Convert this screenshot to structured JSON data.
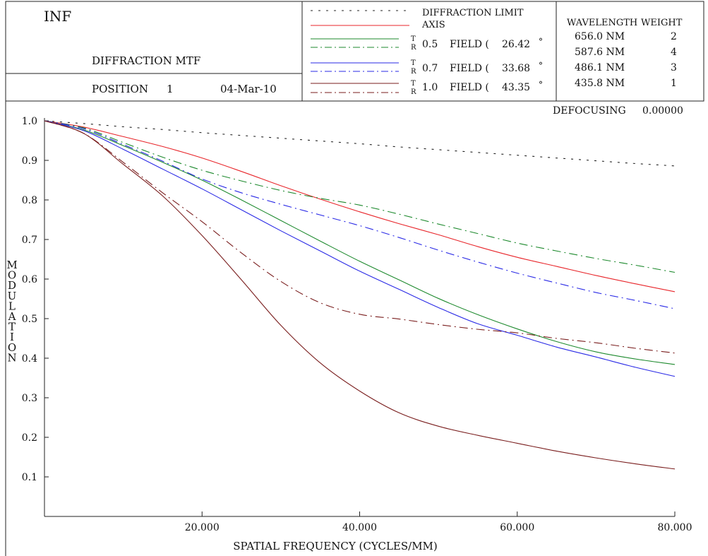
{
  "header": {
    "conjugate": "INF",
    "title": "DIFFRACTION MTF",
    "position_label": "POSITION",
    "position_value": "1",
    "date": "04-Mar-10",
    "defocusing_label": "DEFOCUSING",
    "defocusing_value": "0.00000"
  },
  "legend": {
    "diffraction_limit": "DIFFRACTION LIMIT",
    "axis": "AXIS",
    "t": "T",
    "r": "R",
    "field_word": "FIELD (",
    "degree": "°",
    "fields": [
      {
        "fraction": "0.5",
        "angle": "26.42"
      },
      {
        "fraction": "0.7",
        "angle": "33.68"
      },
      {
        "fraction": "1.0",
        "angle": "43.35"
      }
    ]
  },
  "wavelengths": {
    "header_wavelength": "WAVELENGTH",
    "header_weight": "WEIGHT",
    "rows": [
      {
        "wavelength": "656.0 NM",
        "weight": "2"
      },
      {
        "wavelength": "587.6 NM",
        "weight": "4"
      },
      {
        "wavelength": "486.1 NM",
        "weight": "3"
      },
      {
        "wavelength": "435.8 NM",
        "weight": "1"
      }
    ]
  },
  "colors": {
    "diffraction_limit": "#222222",
    "axis": "#e8262b",
    "field_05": "#1e8a2e",
    "field_07": "#2a2ae6",
    "field_10": "#7a1e1e",
    "frame": "#222222"
  },
  "chart_data": {
    "type": "line",
    "title": "DIFFRACTION MTF",
    "xlabel": "SPATIAL FREQUENCY (CYCLES/MM)",
    "ylabel": "MODULATION",
    "xlim": [
      0,
      80
    ],
    "ylim": [
      0,
      1
    ],
    "xticks": [
      20,
      40,
      60,
      80
    ],
    "xtick_labels": [
      "20.000",
      "40.000",
      "60.000",
      "80.000"
    ],
    "yticks": [
      0.1,
      0.2,
      0.3,
      0.4,
      0.5,
      0.6,
      0.7,
      0.8,
      0.9,
      1.0
    ],
    "ytick_labels": [
      "0.1",
      "0.2",
      "0.3",
      "0.4",
      "0.5",
      "0.6",
      "0.7",
      "0.8",
      "0.9",
      "1.0"
    ],
    "x": [
      0,
      5,
      10,
      15,
      20,
      25,
      30,
      35,
      40,
      45,
      50,
      55,
      60,
      65,
      70,
      75,
      80
    ],
    "series": [
      {
        "name": "DIFFRACTION LIMIT",
        "color": "#222222",
        "dash": "dotted",
        "values": [
          1.0,
          0.993,
          0.985,
          0.978,
          0.97,
          0.963,
          0.956,
          0.949,
          0.942,
          0.934,
          0.927,
          0.92,
          0.913,
          0.906,
          0.899,
          0.892,
          0.886
        ]
      },
      {
        "name": "AXIS",
        "color": "#e8262b",
        "dash": "solid",
        "values": [
          1.0,
          0.984,
          0.96,
          0.935,
          0.906,
          0.872,
          0.836,
          0.802,
          0.77,
          0.74,
          0.712,
          0.682,
          0.655,
          0.632,
          0.609,
          0.588,
          0.568
        ]
      },
      {
        "name": "0.5 FIELD T",
        "color": "#1e8a2e",
        "dash": "solid",
        "values": [
          1.0,
          0.977,
          0.937,
          0.895,
          0.85,
          0.8,
          0.748,
          0.696,
          0.645,
          0.598,
          0.551,
          0.51,
          0.474,
          0.442,
          0.416,
          0.398,
          0.384
        ]
      },
      {
        "name": "0.5 FIELD R",
        "color": "#1e8a2e",
        "dash": "dashdot",
        "values": [
          1.0,
          0.982,
          0.945,
          0.908,
          0.875,
          0.848,
          0.824,
          0.804,
          0.787,
          0.764,
          0.739,
          0.715,
          0.691,
          0.671,
          0.652,
          0.635,
          0.617
        ]
      },
      {
        "name": "0.7 FIELD T",
        "color": "#2a2ae6",
        "dash": "solid",
        "values": [
          1.0,
          0.975,
          0.928,
          0.878,
          0.828,
          0.775,
          0.722,
          0.671,
          0.62,
          0.574,
          0.528,
          0.487,
          0.458,
          0.428,
          0.403,
          0.377,
          0.354
        ]
      },
      {
        "name": "0.7 FIELD R",
        "color": "#2a2ae6",
        "dash": "dashdot",
        "values": [
          1.0,
          0.98,
          0.94,
          0.898,
          0.853,
          0.818,
          0.789,
          0.762,
          0.735,
          0.705,
          0.673,
          0.643,
          0.615,
          0.59,
          0.566,
          0.546,
          0.525
        ]
      },
      {
        "name": "1.0 FIELD T",
        "color": "#7a1e1e",
        "dash": "solid",
        "values": [
          1.0,
          0.968,
          0.89,
          0.81,
          0.71,
          0.598,
          0.483,
          0.388,
          0.317,
          0.262,
          0.228,
          0.205,
          0.185,
          0.165,
          0.148,
          0.133,
          0.12
        ]
      },
      {
        "name": "1.0 FIELD R",
        "color": "#7a1e1e",
        "dash": "dashdot",
        "values": [
          1.0,
          0.968,
          0.895,
          0.818,
          0.745,
          0.666,
          0.594,
          0.54,
          0.511,
          0.499,
          0.485,
          0.473,
          0.464,
          0.45,
          0.439,
          0.425,
          0.413
        ]
      }
    ]
  }
}
